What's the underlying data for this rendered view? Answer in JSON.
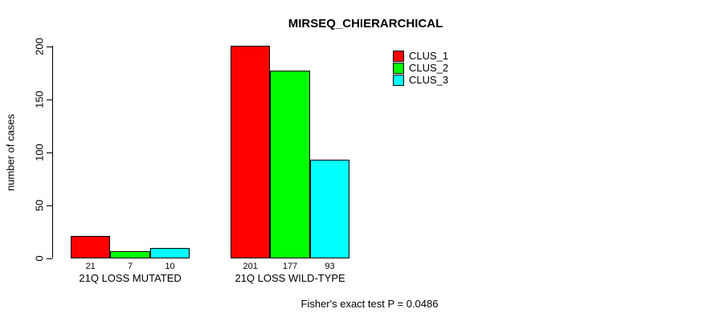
{
  "title": "MIRSEQ_CHIERARCHICAL",
  "footer": "Fisher's exact test P = 0.0486",
  "chart_data": {
    "type": "bar",
    "title": "MIRSEQ_CHIERARCHICAL",
    "xlabel": "",
    "ylabel": "number of cases",
    "categories": [
      "21Q LOSS MUTATED",
      "21Q LOSS WILD-TYPE"
    ],
    "series": [
      {
        "name": "CLUS_1",
        "color": "#ff0000",
        "values": [
          21,
          201
        ]
      },
      {
        "name": "CLUS_2",
        "color": "#00ff00",
        "values": [
          7,
          177
        ]
      },
      {
        "name": "CLUS_3",
        "color": "#00ffff",
        "values": [
          10,
          93
        ]
      }
    ],
    "bar_value_labels": [
      [
        "21",
        "7",
        "10"
      ],
      [
        "201",
        "177",
        "93"
      ]
    ],
    "ylim": [
      0,
      200
    ],
    "yticks": [
      0,
      50,
      100,
      150,
      200
    ],
    "grid": false,
    "legend_position": "top-right",
    "legend_entries": [
      "CLUS_1",
      "CLUS_2",
      "CLUS_3"
    ],
    "annotation": "Fisher's exact test P = 0.0486"
  }
}
